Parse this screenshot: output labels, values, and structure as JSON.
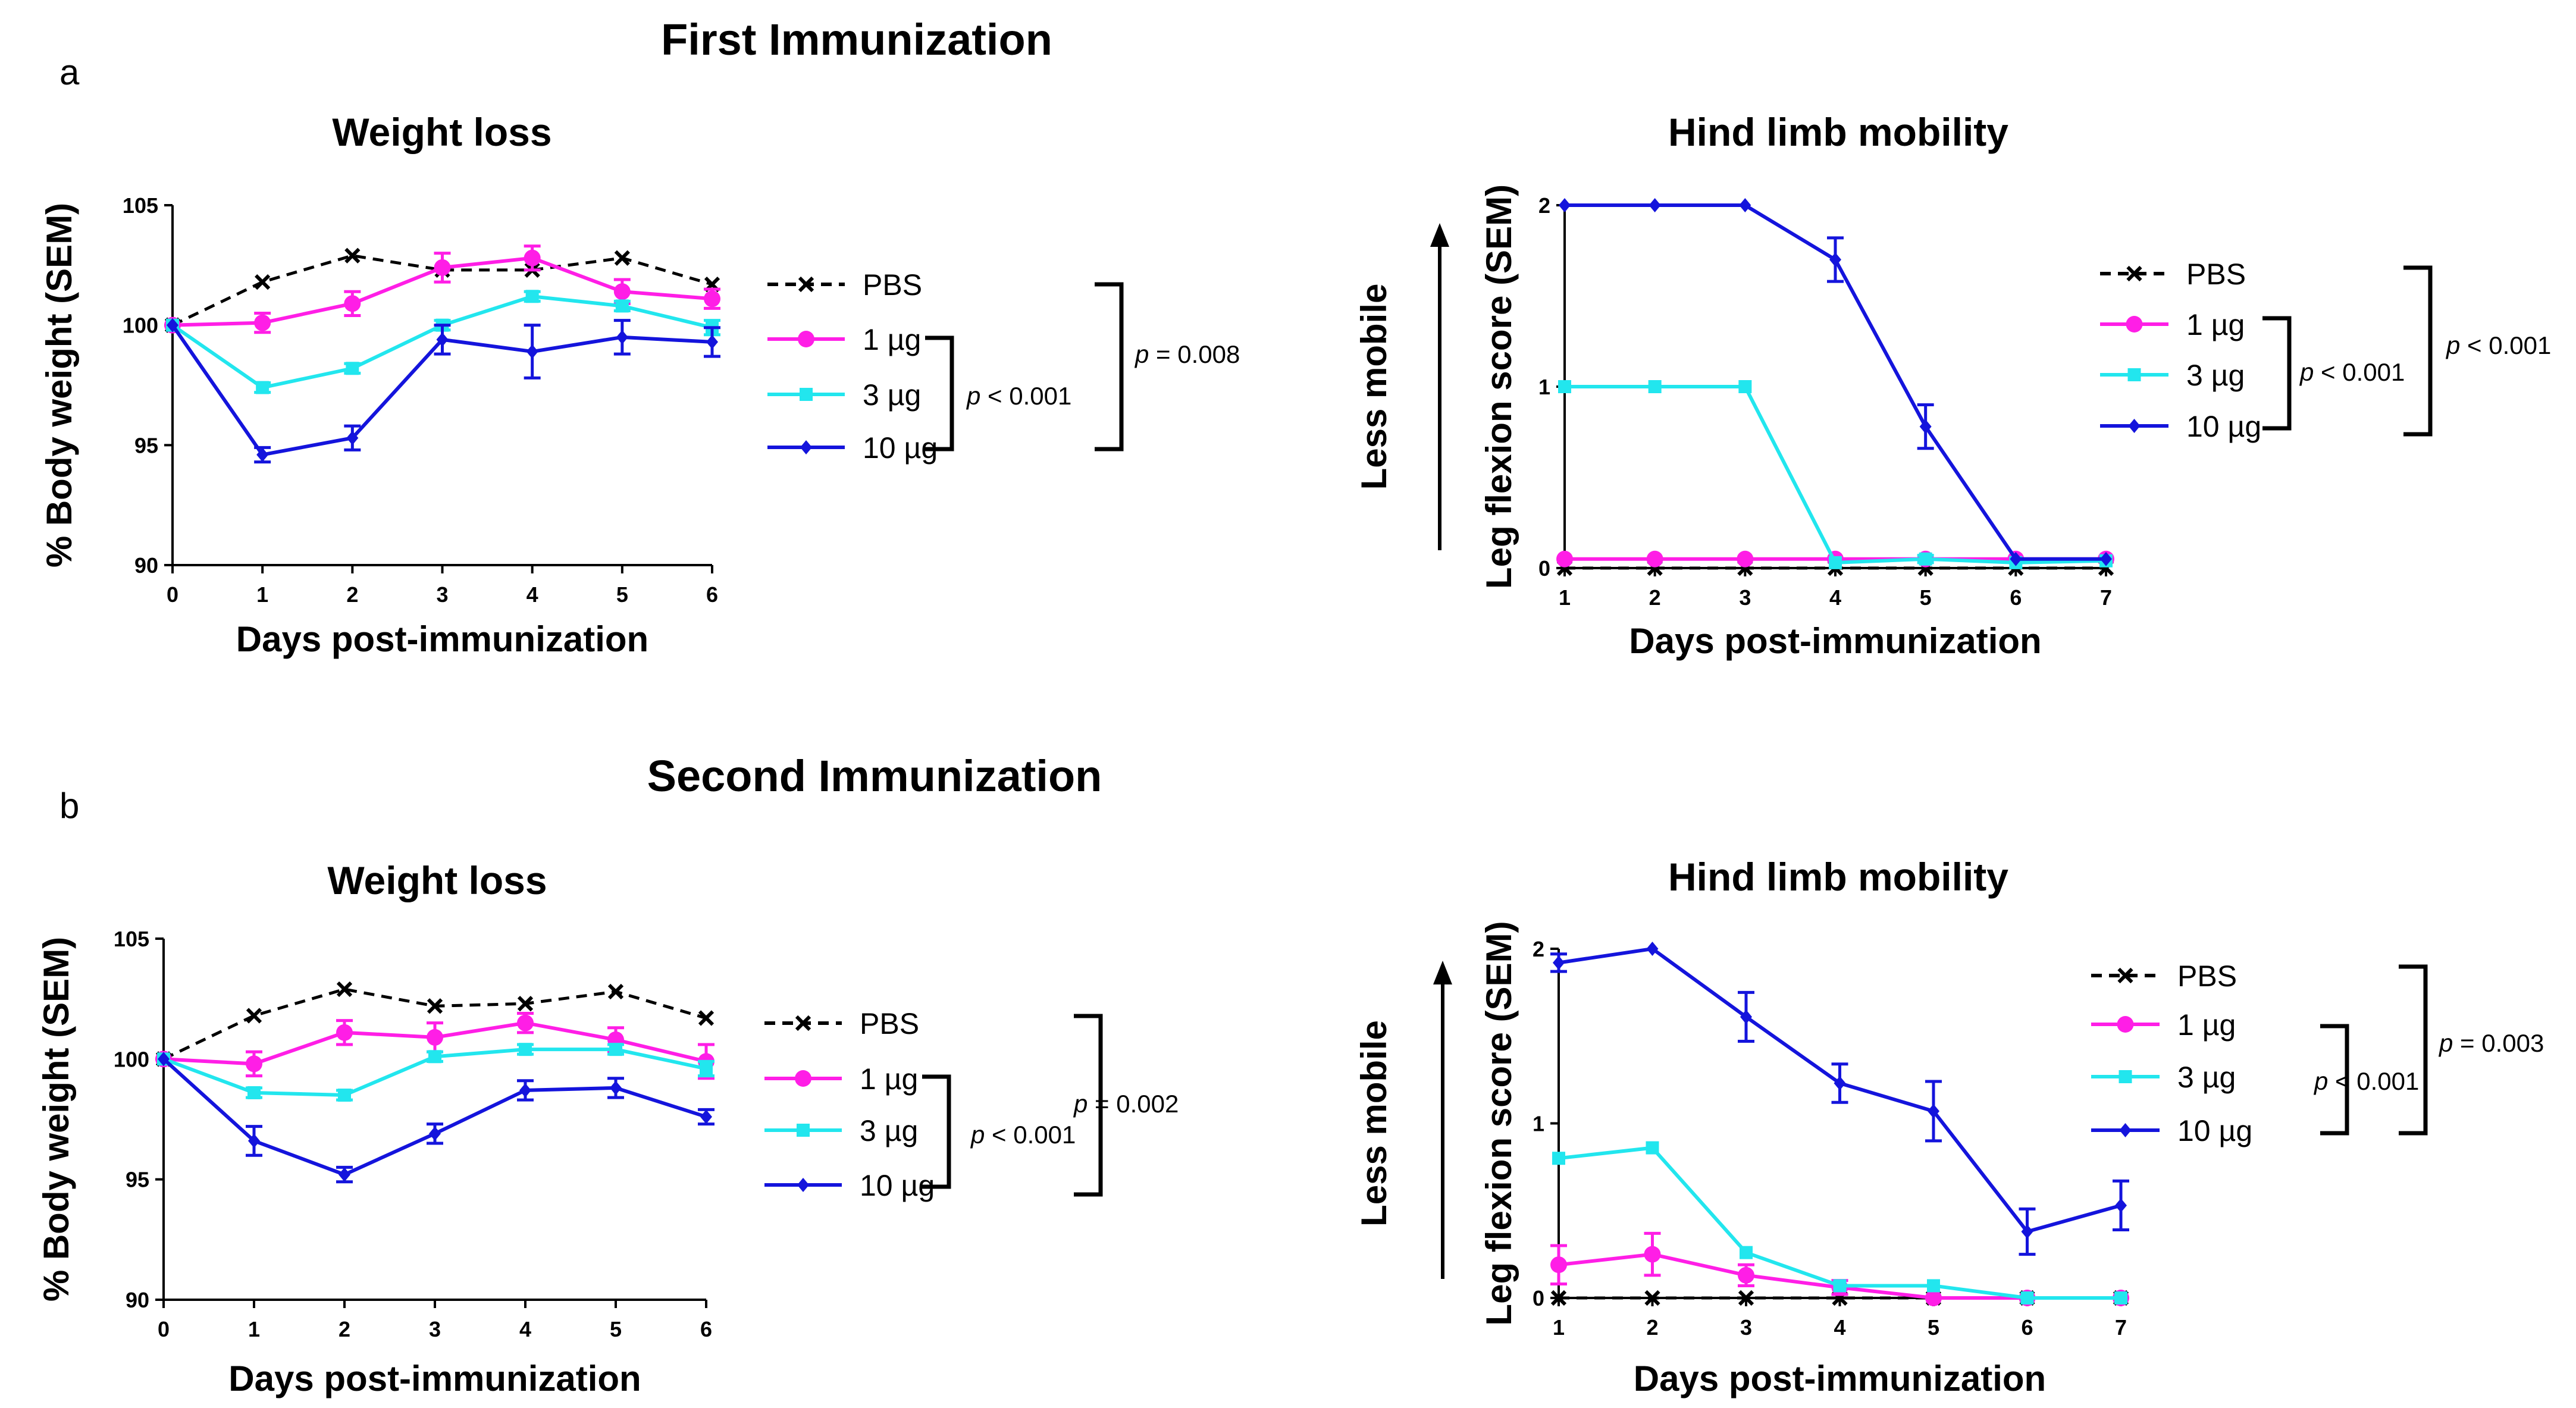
{
  "figure": {
    "sections": [
      {
        "letter": "a",
        "title": "First Immunization"
      },
      {
        "letter": "b",
        "title": "Second Immunization"
      }
    ]
  },
  "colors": {
    "PBS": "#000000",
    "1 µg": "#ff1ee6",
    "3 µg": "#22e6ee",
    "10 µg": "#1414dc"
  },
  "chart_data": [
    {
      "id": "a-weight",
      "type": "line",
      "title": "Weight loss",
      "xlabel": "Days post-immunization",
      "ylabel": "% Body weight (SEM)",
      "xlim": [
        0,
        6
      ],
      "ylim": [
        90,
        105
      ],
      "xticks": [
        0,
        1,
        2,
        3,
        4,
        5,
        6
      ],
      "yticks": [
        90,
        95,
        100,
        105
      ],
      "x": [
        0,
        1,
        2,
        3,
        4,
        5,
        6
      ],
      "series": [
        {
          "name": "PBS",
          "marker": "x",
          "dashed": true,
          "values": [
            100,
            101.8,
            102.9,
            102.3,
            102.3,
            102.8,
            101.7
          ],
          "err": [
            0,
            0,
            0,
            0,
            0,
            0,
            0
          ]
        },
        {
          "name": "1 µg",
          "marker": "circle",
          "dashed": false,
          "values": [
            100,
            100.1,
            100.9,
            102.4,
            102.8,
            101.4,
            101.1
          ],
          "err": [
            0,
            0.4,
            0.5,
            0.6,
            0.5,
            0.5,
            0.4
          ]
        },
        {
          "name": "3 µg",
          "marker": "square",
          "dashed": false,
          "values": [
            100,
            97.4,
            98.2,
            100.0,
            101.2,
            100.8,
            99.9
          ],
          "err": [
            0,
            0.2,
            0.2,
            0.2,
            0.2,
            0.2,
            0.3
          ]
        },
        {
          "name": "10 µg",
          "marker": "diamond",
          "dashed": false,
          "values": [
            100,
            94.6,
            95.3,
            99.4,
            98.9,
            99.5,
            99.3
          ],
          "err": [
            0,
            0.3,
            0.5,
            0.6,
            1.1,
            0.7,
            0.6
          ]
        }
      ],
      "legend": [
        "PBS",
        "1 µg",
        "3 µg",
        "10 µg"
      ],
      "stats": [
        {
          "p": "p",
          "text": " < 0.001"
        },
        {
          "p": "p",
          "text": " = 0.008"
        }
      ]
    },
    {
      "id": "a-mobility",
      "type": "line",
      "title": "Hind limb mobility",
      "xlabel": "Days post-immunization",
      "ylabel": "Leg flexion score (SEM)",
      "side_label": "Less mobile",
      "xlim": [
        1,
        7
      ],
      "ylim": [
        0,
        2
      ],
      "xticks": [
        1,
        2,
        3,
        4,
        5,
        6,
        7
      ],
      "yticks": [
        0,
        1,
        2
      ],
      "x": [
        1,
        2,
        3,
        4,
        5,
        6,
        7
      ],
      "series": [
        {
          "name": "PBS",
          "marker": "x",
          "dashed": true,
          "values": [
            0,
            0,
            0,
            0,
            0,
            0,
            0
          ],
          "err": [
            0,
            0,
            0,
            0,
            0,
            0,
            0
          ]
        },
        {
          "name": "1 µg",
          "marker": "circle",
          "dashed": false,
          "values": [
            0.05,
            0.05,
            0.05,
            0.05,
            0.05,
            0.05,
            0.05
          ],
          "err": [
            0,
            0,
            0,
            0,
            0,
            0,
            0
          ]
        },
        {
          "name": "3 µg",
          "marker": "square",
          "dashed": false,
          "values": [
            1,
            1,
            1,
            0.03,
            0.05,
            0.03,
            0.04
          ],
          "err": [
            0,
            0,
            0,
            0,
            0.02,
            0,
            0
          ]
        },
        {
          "name": "10 µg",
          "marker": "diamond",
          "dashed": false,
          "values": [
            2,
            2,
            2,
            1.7,
            0.78,
            0.05,
            0.05
          ],
          "err": [
            0,
            0,
            0,
            0.12,
            0.12,
            0,
            0
          ]
        }
      ],
      "legend": [
        "PBS",
        "1 µg",
        "3 µg",
        "10 µg"
      ],
      "stats": [
        {
          "p": "p",
          "text": " < 0.001"
        },
        {
          "p": "p",
          "text": " < 0.001"
        }
      ]
    },
    {
      "id": "b-weight",
      "type": "line",
      "title": "Weight loss",
      "xlabel": "Days post-immunization",
      "ylabel": "% Body weight (SEM)",
      "xlim": [
        0,
        6
      ],
      "ylim": [
        90,
        105
      ],
      "xticks": [
        0,
        1,
        2,
        3,
        4,
        5,
        6
      ],
      "yticks": [
        90,
        95,
        100,
        105
      ],
      "x": [
        0,
        1,
        2,
        3,
        4,
        5,
        6
      ],
      "series": [
        {
          "name": "PBS",
          "marker": "x",
          "dashed": true,
          "values": [
            100,
            101.8,
            102.9,
            102.2,
            102.3,
            102.8,
            101.7
          ],
          "err": [
            0,
            0,
            0,
            0,
            0,
            0,
            0
          ]
        },
        {
          "name": "1 µg",
          "marker": "circle",
          "dashed": false,
          "values": [
            100,
            99.8,
            101.1,
            100.9,
            101.5,
            100.8,
            99.9
          ],
          "err": [
            0,
            0.5,
            0.5,
            0.6,
            0.4,
            0.5,
            0.7
          ]
        },
        {
          "name": "3 µg",
          "marker": "square",
          "dashed": false,
          "values": [
            100,
            98.6,
            98.5,
            100.1,
            100.4,
            100.4,
            99.6
          ],
          "err": [
            0,
            0.2,
            0.2,
            0.2,
            0.2,
            0.2,
            0.3
          ]
        },
        {
          "name": "10 µg",
          "marker": "diamond",
          "dashed": false,
          "values": [
            100,
            96.6,
            95.2,
            96.9,
            98.7,
            98.8,
            97.6
          ],
          "err": [
            0,
            0.6,
            0.3,
            0.4,
            0.4,
            0.4,
            0.3
          ]
        }
      ],
      "legend": [
        "PBS",
        "1 µg",
        "3 µg",
        "10 µg"
      ],
      "stats": [
        {
          "p": "p",
          "text": " < 0.001"
        },
        {
          "p": "p",
          "text": " = 0.002"
        }
      ]
    },
    {
      "id": "b-mobility",
      "type": "line",
      "title": "Hind limb mobility",
      "xlabel": "Days post-immunization",
      "ylabel": "Leg flexion score (SEM)",
      "side_label": "Less mobile",
      "xlim": [
        1,
        7
      ],
      "ylim": [
        0,
        2
      ],
      "xticks": [
        1,
        2,
        3,
        4,
        5,
        6,
        7
      ],
      "yticks": [
        0,
        1,
        2
      ],
      "x": [
        1,
        2,
        3,
        4,
        5,
        6,
        7
      ],
      "series": [
        {
          "name": "PBS",
          "marker": "x",
          "dashed": true,
          "values": [
            0,
            0,
            0,
            0,
            0,
            0,
            0
          ],
          "err": [
            0,
            0,
            0,
            0,
            0,
            0,
            0
          ]
        },
        {
          "name": "1 µg",
          "marker": "circle",
          "dashed": false,
          "values": [
            0.19,
            0.25,
            0.13,
            0.06,
            0,
            0,
            0
          ],
          "err": [
            0.11,
            0.12,
            0.06,
            0.04,
            0,
            0,
            0
          ]
        },
        {
          "name": "3 µg",
          "marker": "square",
          "dashed": false,
          "values": [
            0.8,
            0.86,
            0.26,
            0.07,
            0.07,
            0,
            0
          ],
          "err": [
            0,
            0,
            0,
            0,
            0,
            0,
            0
          ]
        },
        {
          "name": "10 µg",
          "marker": "diamond",
          "dashed": false,
          "values": [
            1.92,
            2.0,
            1.61,
            1.23,
            1.07,
            0.38,
            0.53
          ],
          "err": [
            0.05,
            0,
            0.14,
            0.11,
            0.17,
            0.13,
            0.14
          ]
        }
      ],
      "legend": [
        "PBS",
        "1 µg",
        "3 µg",
        "10 µg"
      ],
      "stats": [
        {
          "p": "p",
          "text": " < 0.001"
        },
        {
          "p": "p",
          "text": " = 0.003"
        }
      ]
    }
  ]
}
